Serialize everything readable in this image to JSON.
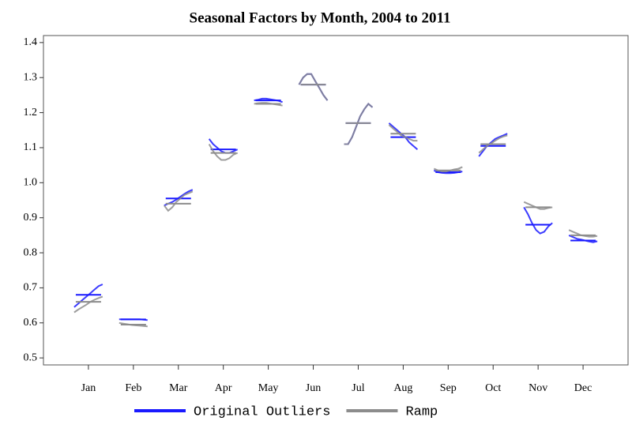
{
  "chart_data": {
    "type": "seasonal-subseries",
    "title": "Seasonal Factors by Month, 2004 to 2011",
    "categories": [
      "Jan",
      "Feb",
      "Mar",
      "Apr",
      "May",
      "Jun",
      "Jul",
      "Aug",
      "Sep",
      "Oct",
      "Nov",
      "Dec"
    ],
    "ylim": [
      0.48,
      1.42
    ],
    "yticks": [
      0.5,
      0.6,
      0.7,
      0.8,
      0.9,
      {
        "value": 1.0,
        "label": "1.0"
      },
      1.1,
      1.2,
      1.3,
      1.4
    ],
    "legend": "bottom",
    "series": [
      {
        "name": "Original Outliers",
        "color": "#1a1aff",
        "values": [
          [
            0.645,
            0.655,
            0.665,
            0.675,
            0.685,
            0.695,
            0.705,
            0.71
          ],
          [
            0.61,
            0.61,
            0.61,
            0.61,
            0.61,
            0.61,
            0.609,
            0.608
          ],
          [
            0.935,
            0.94,
            0.945,
            0.952,
            0.96,
            0.968,
            0.975,
            0.98
          ],
          [
            1.125,
            1.11,
            1.1,
            1.09,
            1.085,
            1.085,
            1.09,
            1.095
          ],
          [
            1.235,
            1.237,
            1.24,
            1.24,
            1.238,
            1.236,
            1.234,
            1.23
          ],
          [
            1.28,
            1.3,
            1.31,
            1.31,
            1.29,
            1.27,
            1.25,
            1.235
          ],
          [
            1.11,
            1.11,
            1.13,
            1.16,
            1.19,
            1.21,
            1.225,
            1.215
          ],
          [
            1.17,
            1.16,
            1.15,
            1.14,
            1.13,
            1.115,
            1.105,
            1.095
          ],
          [
            1.035,
            1.03,
            1.028,
            1.027,
            1.027,
            1.028,
            1.03,
            1.032
          ],
          [
            1.075,
            1.09,
            1.105,
            1.115,
            1.125,
            1.13,
            1.135,
            1.14
          ],
          [
            0.93,
            0.91,
            0.885,
            0.865,
            0.855,
            0.86,
            0.875,
            0.885
          ],
          [
            0.85,
            0.845,
            0.84,
            0.838,
            0.835,
            0.832,
            0.83,
            0.833
          ]
        ],
        "means": [
          0.68,
          0.61,
          0.955,
          1.095,
          1.235,
          1.28,
          1.17,
          1.13,
          1.03,
          1.105,
          0.88,
          0.835
        ]
      },
      {
        "name": "Ramp",
        "color": "#8c8c8c",
        "values": [
          [
            0.63,
            0.638,
            0.645,
            0.652,
            0.66,
            0.666,
            0.671,
            0.675
          ],
          [
            0.6,
            0.598,
            0.596,
            0.594,
            0.593,
            0.592,
            0.591,
            0.59
          ],
          [
            0.935,
            0.92,
            0.93,
            0.945,
            0.955,
            0.965,
            0.97,
            0.975
          ],
          [
            1.11,
            1.09,
            1.075,
            1.065,
            1.065,
            1.07,
            1.08,
            1.085
          ],
          [
            1.225,
            1.227,
            1.228,
            1.228,
            1.226,
            1.224,
            1.222,
            1.22
          ],
          [
            1.28,
            1.3,
            1.31,
            1.31,
            1.29,
            1.27,
            1.25,
            1.235
          ],
          [
            1.11,
            1.11,
            1.13,
            1.16,
            1.19,
            1.21,
            1.225,
            1.215
          ],
          [
            1.165,
            1.155,
            1.145,
            1.135,
            1.13,
            1.125,
            1.12,
            1.12
          ],
          [
            1.04,
            1.035,
            1.032,
            1.032,
            1.035,
            1.038,
            1.04,
            1.045
          ],
          [
            1.085,
            1.095,
            1.105,
            1.112,
            1.12,
            1.127,
            1.132,
            1.135
          ],
          [
            0.945,
            0.94,
            0.935,
            0.93,
            0.925,
            0.925,
            0.928,
            0.93
          ],
          [
            0.865,
            0.86,
            0.855,
            0.85,
            0.848,
            0.846,
            0.846,
            0.848
          ]
        ],
        "means": [
          0.66,
          0.595,
          0.94,
          1.085,
          1.225,
          1.28,
          1.17,
          1.14,
          1.035,
          1.11,
          0.93,
          0.85
        ]
      }
    ]
  }
}
